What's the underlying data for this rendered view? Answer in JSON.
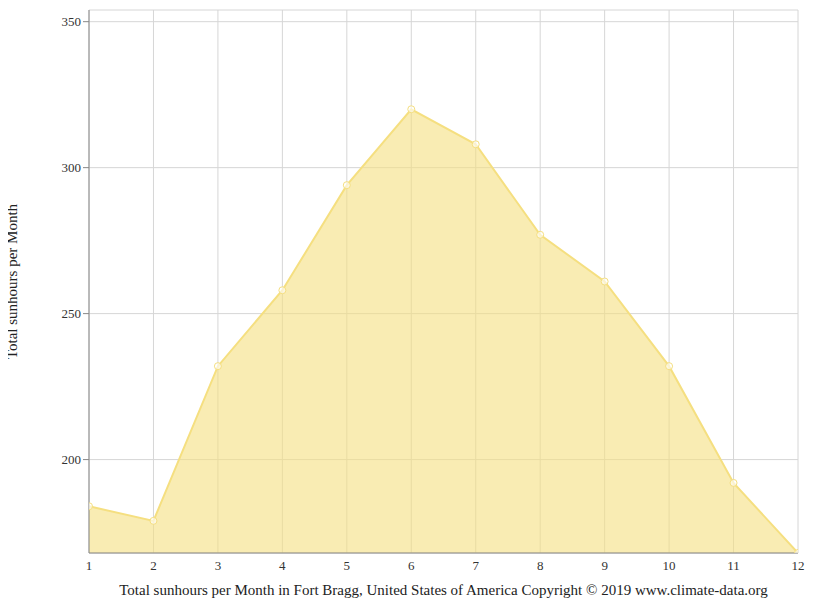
{
  "chart_data": {
    "type": "area",
    "title": "Total sunhours per Month in Fort Bragg, United States of America Copyright © 2019 www.climate-data.org",
    "y_label": "Total sunhours per Month",
    "x": [
      1,
      2,
      3,
      4,
      5,
      6,
      7,
      8,
      9,
      10,
      11,
      12
    ],
    "values": [
      184,
      179,
      232,
      258,
      294,
      320,
      308,
      277,
      261,
      232,
      192,
      168
    ],
    "color": "#f5df80",
    "xlim": [
      1,
      12
    ],
    "xticks": [
      1,
      2,
      3,
      4,
      5,
      6,
      7,
      8,
      9,
      10,
      11,
      12
    ],
    "ylim": [
      168,
      354
    ],
    "yticks": [
      200,
      250,
      300,
      350
    ],
    "grid": true,
    "marker": "circle"
  }
}
